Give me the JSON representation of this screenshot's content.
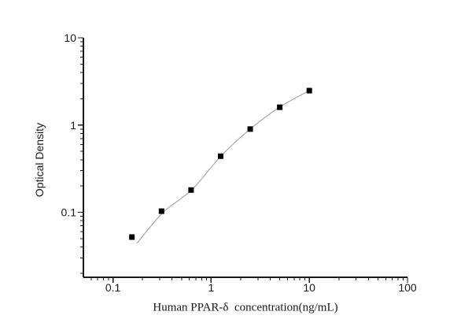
{
  "figure": {
    "background": "#ffffff",
    "title": ""
  },
  "chart_data": {
    "type": "scatter",
    "title": "",
    "xlabel": "Human PPAR-δ  concentration(ng/mL)",
    "ylabel": "Optical Density",
    "x_scale": "log",
    "y_scale": "log",
    "xlim": [
      0.05,
      100
    ],
    "ylim": [
      0.018,
      10
    ],
    "grid": false,
    "legend_position": "none",
    "axis_color": "#1a1a1a",
    "x_major_ticks": {
      "values": [
        0.1,
        1,
        10,
        100
      ],
      "labels": [
        "0.1",
        "1",
        "10",
        "100"
      ]
    },
    "y_major_ticks": {
      "values": [
        0.1,
        1,
        10
      ],
      "labels": [
        "0.1",
        "1",
        "10"
      ]
    },
    "series": [
      {
        "name": "fitted-curve",
        "type": "line",
        "color": "#9b9b9b",
        "x": [
          0.175,
          0.325,
          0.635,
          1.26,
          2.5,
          5,
          10
        ],
        "y": [
          0.044,
          0.1,
          0.181,
          0.44,
          0.9,
          1.61,
          2.48
        ]
      },
      {
        "name": "standard-points",
        "type": "scatter",
        "marker": "filled-square",
        "color": "#000000",
        "x": [
          0.156,
          0.3125,
          0.625,
          1.25,
          2.5,
          5,
          10
        ],
        "y": [
          0.052,
          0.103,
          0.18,
          0.44,
          0.9,
          1.6,
          2.48
        ]
      }
    ]
  }
}
